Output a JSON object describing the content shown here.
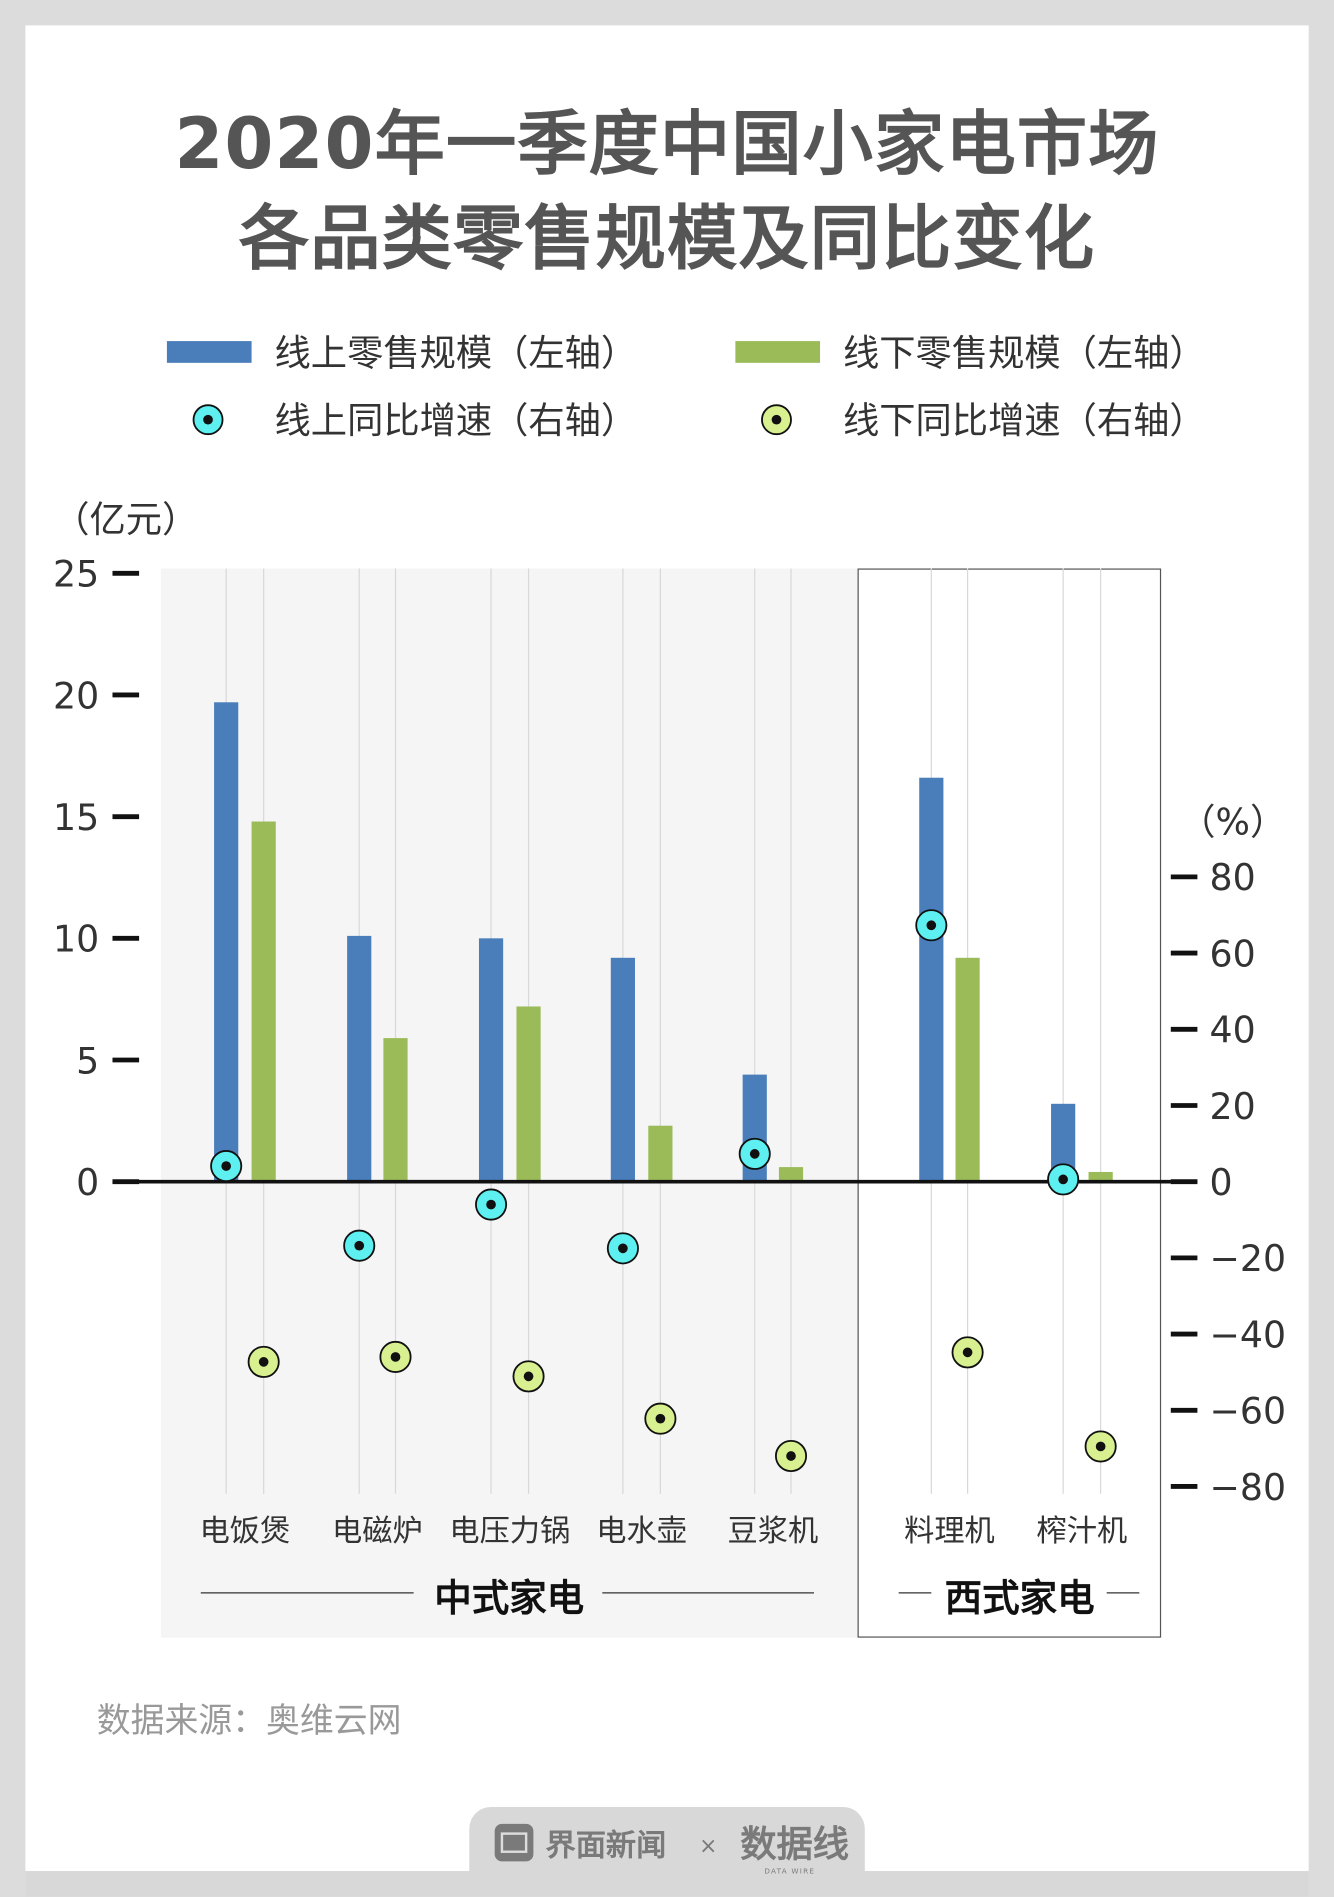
{
  "title": {
    "line1": "2020年一季度中国小家电市场",
    "line2": "各品类零售规模及同比变化"
  },
  "legend": [
    {
      "label": "线上零售规模（左轴）",
      "kind": "bar",
      "color": "#4a7ebb"
    },
    {
      "label": "线下零售规模（左轴）",
      "kind": "bar",
      "color": "#9bbb59"
    },
    {
      "label": "线上同比增速（右轴）",
      "kind": "dot",
      "color": "#5ef0f0"
    },
    {
      "label": "线下同比增速（右轴）",
      "kind": "dot",
      "color": "#d8f090"
    }
  ],
  "chart_data": {
    "type": "bar",
    "left_axis": {
      "unit": "（亿元）",
      "range": [
        0,
        25
      ],
      "ticks": [
        "0",
        "5",
        "10",
        "15",
        "20",
        "25"
      ]
    },
    "right_axis": {
      "unit": "（%）",
      "range": [
        -80,
        80
      ],
      "ticks": [
        "80",
        "60",
        "40",
        "20",
        "0",
        "-20",
        "-40",
        "-60",
        "-80"
      ]
    },
    "categories": [
      "电饭煲",
      "电磁炉",
      "电压力锅",
      "电水壶",
      "豆浆机",
      "料理机",
      "榨汁机"
    ],
    "groups": [
      {
        "label": "中式家电",
        "categories": [
          "电饭煲",
          "电磁炉",
          "电压力锅",
          "电水壶",
          "豆浆机"
        ]
      },
      {
        "label": "西式家电",
        "categories": [
          "料理机",
          "榨汁机"
        ]
      }
    ],
    "series": [
      {
        "name": "线上零售规模（左轴）",
        "type": "bar",
        "axis": "left",
        "values": [
          19.7,
          10.1,
          10.0,
          9.2,
          4.4,
          16.6,
          3.2
        ]
      },
      {
        "name": "线下零售规模（左轴）",
        "type": "bar",
        "axis": "left",
        "values": [
          14.8,
          5.9,
          7.2,
          2.3,
          0.6,
          9.2,
          0.4
        ]
      },
      {
        "name": "线上同比增速（右轴）",
        "type": "scatter",
        "axis": "right",
        "values": [
          4.1,
          -16.8,
          -6.0,
          -17.5,
          7.3,
          67.3,
          0.6
        ]
      },
      {
        "name": "线下同比增速（右轴）",
        "type": "scatter",
        "axis": "right",
        "values": [
          -47.3,
          -46.0,
          -51.1,
          -62.2,
          -72.0,
          -44.8,
          -69.5
        ]
      }
    ],
    "grid": true
  },
  "source": "数据来源：奥维云网",
  "footer": {
    "brand": "界面新闻",
    "separator": "×",
    "partner": "数据线",
    "partner_sub": "DATA WIRE"
  }
}
